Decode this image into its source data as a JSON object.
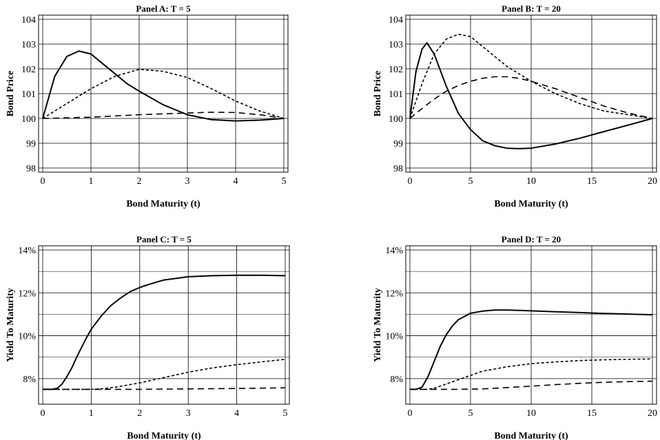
{
  "chart_data": [
    {
      "type": "line",
      "title": "Panel A: T = 5",
      "xlabel": "Bond Maturity (t)",
      "ylabel": "Bond Price",
      "xlim": [
        0,
        5
      ],
      "ylim": [
        98,
        104
      ],
      "xticks": [
        "0",
        "1",
        "2",
        "3",
        "4",
        "5"
      ],
      "yticks": [
        "98",
        "99",
        "100",
        "101",
        "102",
        "103",
        "104"
      ],
      "grid": true,
      "series": [
        {
          "style": "solid",
          "x": [
            0,
            0.25,
            0.5,
            0.75,
            1,
            1.25,
            1.5,
            1.75,
            2,
            2.5,
            3,
            3.5,
            4,
            4.5,
            5
          ],
          "y": [
            100,
            101.7,
            102.5,
            102.72,
            102.6,
            102.2,
            101.8,
            101.4,
            101.1,
            100.55,
            100.15,
            99.95,
            99.9,
            99.93,
            100
          ]
        },
        {
          "style": "dotted",
          "x": [
            0,
            0.5,
            1,
            1.5,
            2,
            2.5,
            3,
            3.5,
            4,
            4.5,
            5
          ],
          "y": [
            100,
            100.6,
            101.2,
            101.7,
            101.98,
            101.9,
            101.65,
            101.2,
            100.7,
            100.3,
            100
          ]
        },
        {
          "style": "dashed",
          "x": [
            0,
            1,
            2,
            3,
            3.5,
            4,
            4.5,
            5
          ],
          "y": [
            100,
            100.05,
            100.15,
            100.22,
            100.25,
            100.24,
            100.15,
            100
          ]
        }
      ]
    },
    {
      "type": "line",
      "title": "Panel B: T = 20",
      "xlabel": "Bond Maturity (t)",
      "ylabel": "Bond Price",
      "xlim": [
        0,
        20
      ],
      "ylim": [
        98,
        104
      ],
      "xticks": [
        "0",
        "5",
        "10",
        "15",
        "20"
      ],
      "yticks": [
        "98",
        "99",
        "100",
        "101",
        "102",
        "103",
        "104"
      ],
      "grid": true,
      "series": [
        {
          "style": "solid",
          "x": [
            0,
            0.5,
            1,
            1.4,
            2,
            3,
            4,
            5,
            6,
            7,
            8,
            9,
            10,
            12,
            14,
            16,
            18,
            20
          ],
          "y": [
            100,
            101.9,
            102.8,
            103.05,
            102.6,
            101.3,
            100.2,
            99.55,
            99.1,
            98.9,
            98.8,
            98.78,
            98.8,
            98.97,
            99.2,
            99.47,
            99.73,
            100
          ]
        },
        {
          "style": "dotted",
          "x": [
            0,
            1,
            2,
            3,
            4,
            5,
            6,
            8,
            10,
            12,
            14,
            16,
            18,
            20
          ],
          "y": [
            100,
            101.4,
            102.6,
            103.2,
            103.4,
            103.3,
            102.9,
            102.1,
            101.5,
            101,
            100.6,
            100.3,
            100.15,
            100
          ]
        },
        {
          "style": "dashed",
          "x": [
            0,
            1,
            2,
            3,
            4,
            5,
            6,
            7,
            8,
            9,
            10,
            12,
            14,
            16,
            18,
            20
          ],
          "y": [
            100,
            100.4,
            100.78,
            101.1,
            101.33,
            101.5,
            101.62,
            101.68,
            101.68,
            101.62,
            101.5,
            101.2,
            100.85,
            100.5,
            100.22,
            100
          ]
        }
      ]
    },
    {
      "type": "line",
      "title": "Panel C: T = 5",
      "xlabel": "Bond Maturity (t)",
      "ylabel": "Yield To Maturity",
      "xlim": [
        0,
        5
      ],
      "ylim": [
        7,
        14
      ],
      "xticks": [
        "0",
        "1",
        "2",
        "3",
        "4",
        "5"
      ],
      "yticks": [
        "8%",
        "10%",
        "12%",
        "14%"
      ],
      "grid": true,
      "series": [
        {
          "style": "solid",
          "x": [
            0,
            0.2,
            0.3,
            0.4,
            0.5,
            0.6,
            0.7,
            0.8,
            0.9,
            1,
            1.2,
            1.4,
            1.6,
            1.8,
            2,
            2.2,
            2.5,
            3,
            3.5,
            4,
            4.5,
            5
          ],
          "y": [
            7.5,
            7.5,
            7.55,
            7.75,
            8.1,
            8.5,
            9,
            9.45,
            9.9,
            10.3,
            10.9,
            11.4,
            11.75,
            12.05,
            12.25,
            12.4,
            12.6,
            12.75,
            12.8,
            12.82,
            12.82,
            12.8
          ]
        },
        {
          "style": "dotted",
          "x": [
            0,
            0.5,
            1,
            1.2,
            1.5,
            2,
            2.5,
            3,
            3.5,
            4,
            4.5,
            5
          ],
          "y": [
            7.5,
            7.5,
            7.5,
            7.52,
            7.6,
            7.8,
            8.05,
            8.3,
            8.5,
            8.65,
            8.78,
            8.9
          ]
        },
        {
          "style": "dashed",
          "x": [
            0,
            1,
            2,
            3,
            4,
            5
          ],
          "y": [
            7.5,
            7.5,
            7.5,
            7.52,
            7.54,
            7.57
          ]
        }
      ]
    },
    {
      "type": "line",
      "title": "Panel D: T = 20",
      "xlabel": "Bond Maturity (t)",
      "ylabel": "Yield To Maturity",
      "xlim": [
        0,
        20
      ],
      "ylim": [
        7,
        14
      ],
      "xticks": [
        "0",
        "5",
        "10",
        "15",
        "20"
      ],
      "yticks": [
        "8%",
        "10%",
        "12%",
        "14%"
      ],
      "grid": true,
      "series": [
        {
          "style": "solid",
          "x": [
            0,
            0.5,
            1,
            1.5,
            2,
            2.5,
            3,
            3.5,
            4,
            5,
            6,
            7,
            8,
            9,
            10,
            12,
            14,
            16,
            18,
            20
          ],
          "y": [
            7.5,
            7.5,
            7.6,
            8.1,
            8.8,
            9.5,
            10.05,
            10.45,
            10.75,
            11.05,
            11.15,
            11.2,
            11.2,
            11.18,
            11.16,
            11.12,
            11.08,
            11.04,
            11.01,
            10.98
          ]
        },
        {
          "style": "dotted",
          "x": [
            0,
            1.5,
            2,
            3,
            4,
            5,
            6,
            8,
            10,
            12,
            14,
            16,
            18,
            20
          ],
          "y": [
            7.5,
            7.5,
            7.55,
            7.75,
            7.95,
            8.15,
            8.35,
            8.55,
            8.7,
            8.78,
            8.84,
            8.88,
            8.9,
            8.92
          ]
        },
        {
          "style": "dashed",
          "x": [
            0,
            2,
            4,
            6,
            8,
            10,
            12,
            14,
            16,
            18,
            20
          ],
          "y": [
            7.5,
            7.5,
            7.5,
            7.52,
            7.58,
            7.65,
            7.72,
            7.78,
            7.83,
            7.86,
            7.88
          ]
        }
      ]
    }
  ]
}
